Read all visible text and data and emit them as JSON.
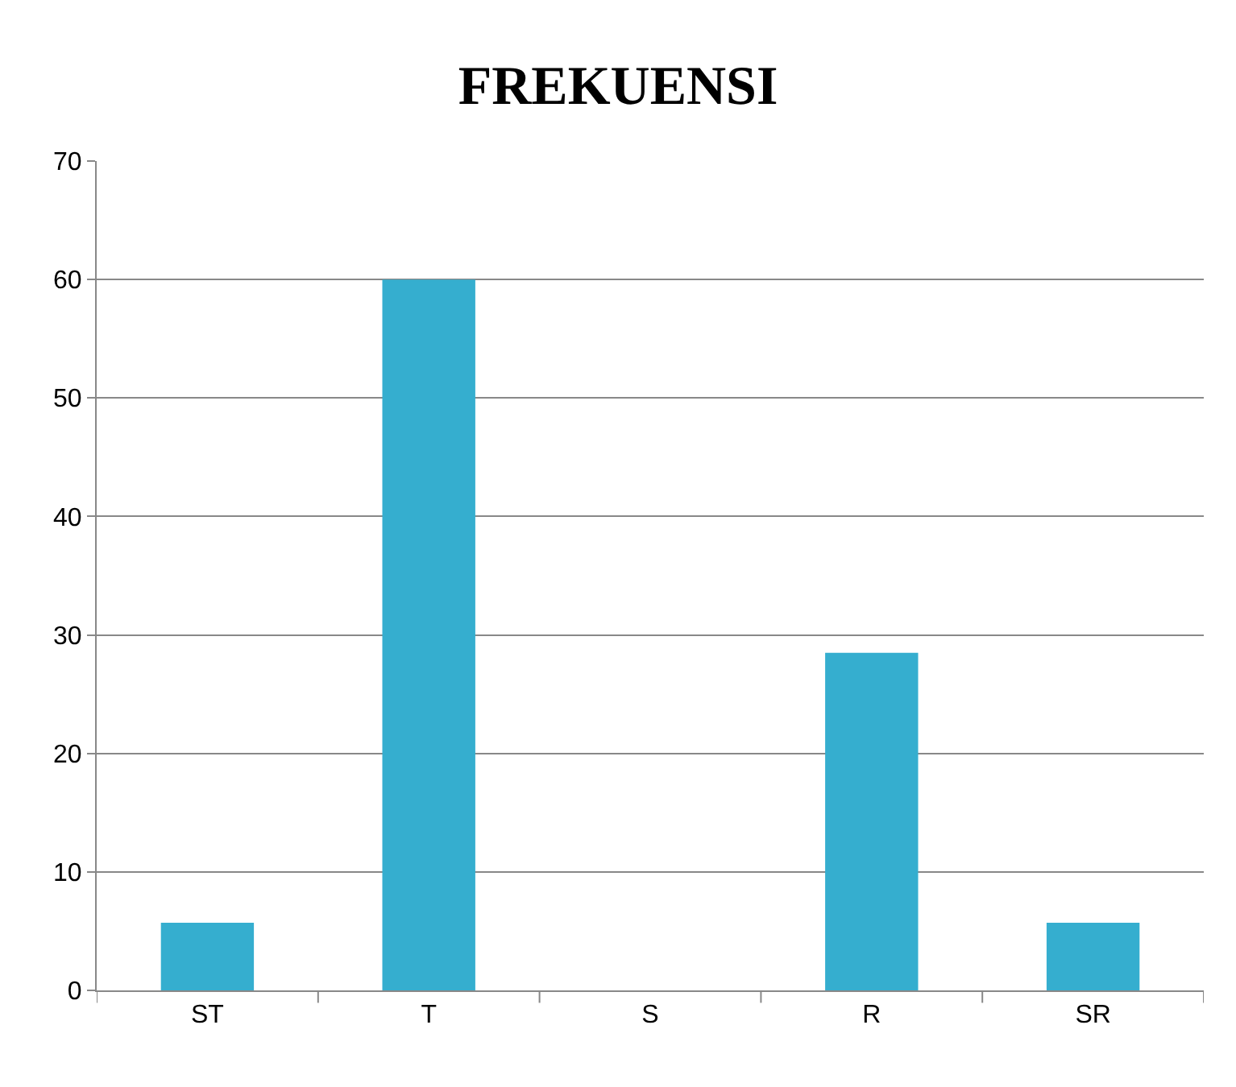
{
  "chart_data": {
    "type": "bar",
    "title": "FREKUENSI",
    "categories": [
      "ST",
      "T",
      "S",
      "R",
      "SR"
    ],
    "values": [
      5.7,
      60,
      0,
      28.5,
      5.7
    ],
    "color": "#35aecf",
    "ylim": [
      0,
      70
    ],
    "yticks": [
      0,
      10,
      20,
      30,
      40,
      50,
      60,
      70
    ],
    "grid": "y"
  }
}
